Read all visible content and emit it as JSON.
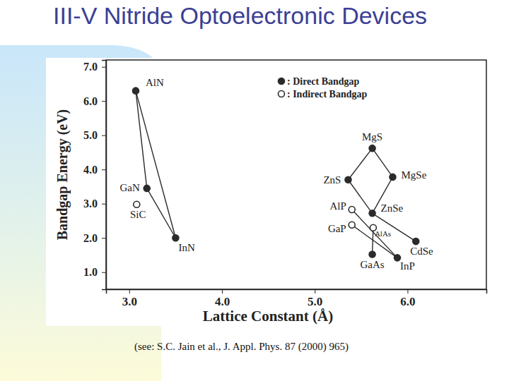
{
  "chart_data": {
    "type": "scatter",
    "title": "III-V Nitride Optoelectronic Devices",
    "x_label": "Lattice Constant (Å)",
    "y_label": "Bandgap Energy (eV)",
    "source": "(see: S.C. Jain et al., J. Appl. Phys. 87 (2000) 965)",
    "xlim": [
      2.75,
      6.85
    ],
    "ylim": [
      0.5,
      7.2
    ],
    "xticks": [
      {
        "value": 3,
        "label": "3.0"
      },
      {
        "value": 4,
        "label": "4.0"
      },
      {
        "value": 5,
        "label": "5.0"
      },
      {
        "value": 6,
        "label": "6.0"
      }
    ],
    "yticks": [
      {
        "value": 1,
        "label": "1.0"
      },
      {
        "value": 2,
        "label": "2.0"
      },
      {
        "value": 3,
        "label": "3.0"
      },
      {
        "value": 4,
        "label": "4.0"
      },
      {
        "value": 5,
        "label": "5.0"
      },
      {
        "value": 6,
        "label": "6.0"
      },
      {
        "value": 7,
        "label": "7.0"
      }
    ],
    "grid": false,
    "legend": "upper right",
    "series": [
      {
        "name": ": Direct Bandgap",
        "marker": "filled",
        "color": "#2b2b2b",
        "labels": [
          "AlN",
          "GaN",
          "InN",
          "MgS",
          "ZnS",
          "MgSe",
          "ZnSe",
          "CdSe",
          "GaAs",
          "InP"
        ],
        "x": [
          3.07,
          3.19,
          3.5,
          5.62,
          5.36,
          5.84,
          5.62,
          6.09,
          5.62,
          5.89
        ],
        "values": [
          6.3,
          3.45,
          2.0,
          4.62,
          3.7,
          3.78,
          2.72,
          1.9,
          1.52,
          1.42
        ]
      },
      {
        "name": ": Indirect Bandgap",
        "marker": "open",
        "color": "#2b2b2b",
        "labels": [
          "SiC",
          "AlP",
          "GaP",
          "AlAs"
        ],
        "x": [
          3.08,
          5.4,
          5.4,
          5.63
        ],
        "values": [
          2.98,
          2.83,
          2.38,
          2.3
        ]
      }
    ],
    "links": [
      [
        [
          0,
          0
        ],
        [
          0,
          1
        ]
      ],
      [
        [
          0,
          1
        ],
        [
          0,
          2
        ]
      ],
      [
        [
          0,
          0
        ],
        [
          0,
          2
        ]
      ],
      [
        [
          0,
          3
        ],
        [
          0,
          4
        ]
      ],
      [
        [
          0,
          3
        ],
        [
          0,
          5
        ]
      ],
      [
        [
          0,
          4
        ],
        [
          0,
          6
        ]
      ],
      [
        [
          0,
          5
        ],
        [
          0,
          6
        ]
      ],
      [
        [
          0,
          6
        ],
        [
          0,
          7
        ]
      ],
      [
        [
          1,
          1
        ],
        [
          0,
          9
        ]
      ],
      [
        [
          1,
          2
        ],
        [
          0,
          9
        ]
      ],
      [
        [
          1,
          3
        ],
        [
          0,
          8
        ]
      ]
    ]
  }
}
